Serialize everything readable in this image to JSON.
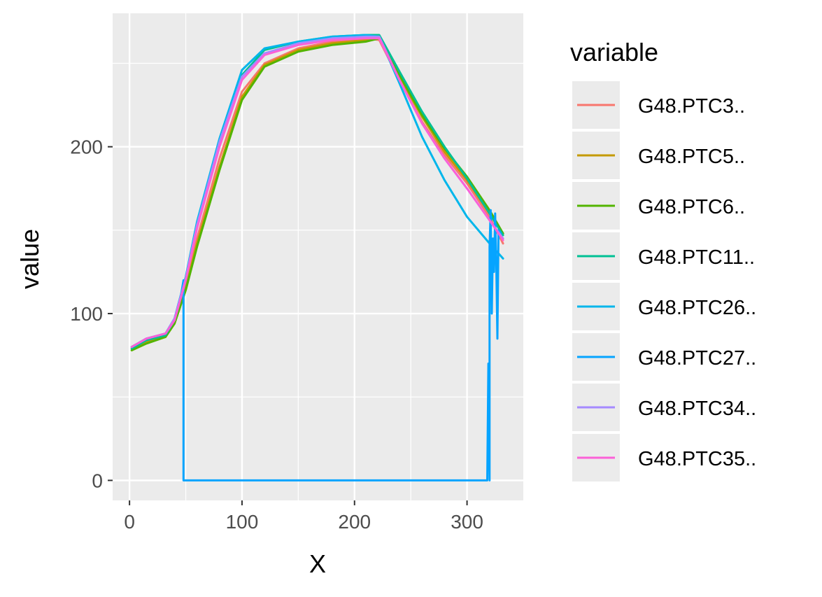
{
  "chart_data": {
    "type": "line",
    "xlabel": "X",
    "ylabel": "value",
    "xlim": [
      -15,
      350
    ],
    "ylim": [
      -12,
      280
    ],
    "x_ticks": [
      0,
      100,
      200,
      300
    ],
    "y_ticks": [
      0,
      100,
      200
    ],
    "x_tick_labels": [
      "0",
      "100",
      "200",
      "300"
    ],
    "y_tick_labels": [
      "0",
      "100",
      "200"
    ],
    "grid": true,
    "legend_title": "variable",
    "legend_position": "right",
    "series": [
      {
        "name": "G48.PTC3..",
        "color": "#F8766D",
        "x": [
          2,
          15,
          32,
          40,
          50,
          60,
          80,
          100,
          120,
          150,
          180,
          210,
          222,
          240,
          260,
          280,
          300,
          320,
          332
        ],
        "y": [
          79,
          83,
          87,
          95,
          118,
          145,
          193,
          233,
          250,
          259,
          263,
          265,
          264,
          240,
          215,
          195,
          178,
          158,
          142
        ]
      },
      {
        "name": "G48.PTC5..",
        "color": "#C49A00",
        "x": [
          2,
          15,
          32,
          40,
          50,
          60,
          80,
          100,
          120,
          150,
          180,
          210,
          222,
          240,
          260,
          280,
          300,
          320,
          332
        ],
        "y": [
          78,
          83,
          86,
          94,
          115,
          142,
          188,
          230,
          249,
          258,
          262,
          264,
          265,
          242,
          218,
          197,
          180,
          160,
          148
        ]
      },
      {
        "name": "G48.PTC6..",
        "color": "#53B400",
        "x": [
          2,
          15,
          32,
          40,
          50,
          60,
          80,
          100,
          120,
          150,
          180,
          210,
          222,
          240,
          260,
          280,
          300,
          320,
          332
        ],
        "y": [
          78,
          82,
          86,
          94,
          114,
          140,
          186,
          228,
          248,
          257,
          261,
          263,
          265,
          243,
          219,
          199,
          182,
          162,
          148
        ]
      },
      {
        "name": "G48.PTC11..",
        "color": "#00C094",
        "x": [
          2,
          15,
          32,
          40,
          50,
          60,
          80,
          100,
          120,
          150,
          180,
          210,
          222,
          240,
          260,
          280,
          300,
          320,
          332
        ],
        "y": [
          79,
          84,
          87,
          96,
          120,
          152,
          202,
          243,
          258,
          263,
          266,
          267,
          267,
          245,
          221,
          200,
          181,
          160,
          147
        ]
      },
      {
        "name": "G48.PTC26..",
        "color": "#00B6EB",
        "x": [
          2,
          15,
          32,
          40,
          50,
          60,
          80,
          100,
          120,
          150,
          180,
          210,
          222,
          240,
          260,
          280,
          300,
          320,
          332
        ],
        "y": [
          80,
          85,
          88,
          97,
          122,
          155,
          205,
          246,
          259,
          263,
          266,
          267,
          266,
          238,
          206,
          180,
          158,
          142,
          133
        ]
      },
      {
        "name": "G48.PTC27..",
        "color": "#06A4FF",
        "x": [
          2,
          15,
          32,
          40,
          46,
          48,
          48,
          48,
          100,
          200,
          300,
          318,
          319,
          320,
          320,
          321,
          322,
          323,
          324,
          325,
          326,
          327,
          328,
          330
        ],
        "y": [
          80,
          85,
          88,
          97,
          112,
          120,
          60,
          0,
          0,
          0,
          0,
          0,
          70,
          0,
          140,
          162,
          100,
          145,
          125,
          160,
          130,
          85,
          150,
          148
        ]
      },
      {
        "name": "G48.PTC34..",
        "color": "#A58AFF",
        "x": [
          2,
          15,
          32,
          40,
          50,
          60,
          80,
          100,
          120,
          150,
          180,
          210,
          222,
          240,
          260,
          280,
          300,
          320,
          332
        ],
        "y": [
          80,
          85,
          88,
          97,
          121,
          153,
          203,
          242,
          256,
          262,
          265,
          266,
          266,
          240,
          214,
          193,
          175,
          156,
          145
        ]
      },
      {
        "name": "G48.PTC35..",
        "color": "#FB61D7",
        "x": [
          2,
          15,
          32,
          40,
          50,
          60,
          80,
          100,
          120,
          150,
          180,
          210,
          222,
          240,
          260,
          280,
          300,
          320,
          332
        ],
        "y": [
          80,
          85,
          88,
          96,
          120,
          151,
          200,
          240,
          255,
          261,
          264,
          265,
          265,
          240,
          214,
          193,
          175,
          156,
          144
        ]
      }
    ]
  }
}
